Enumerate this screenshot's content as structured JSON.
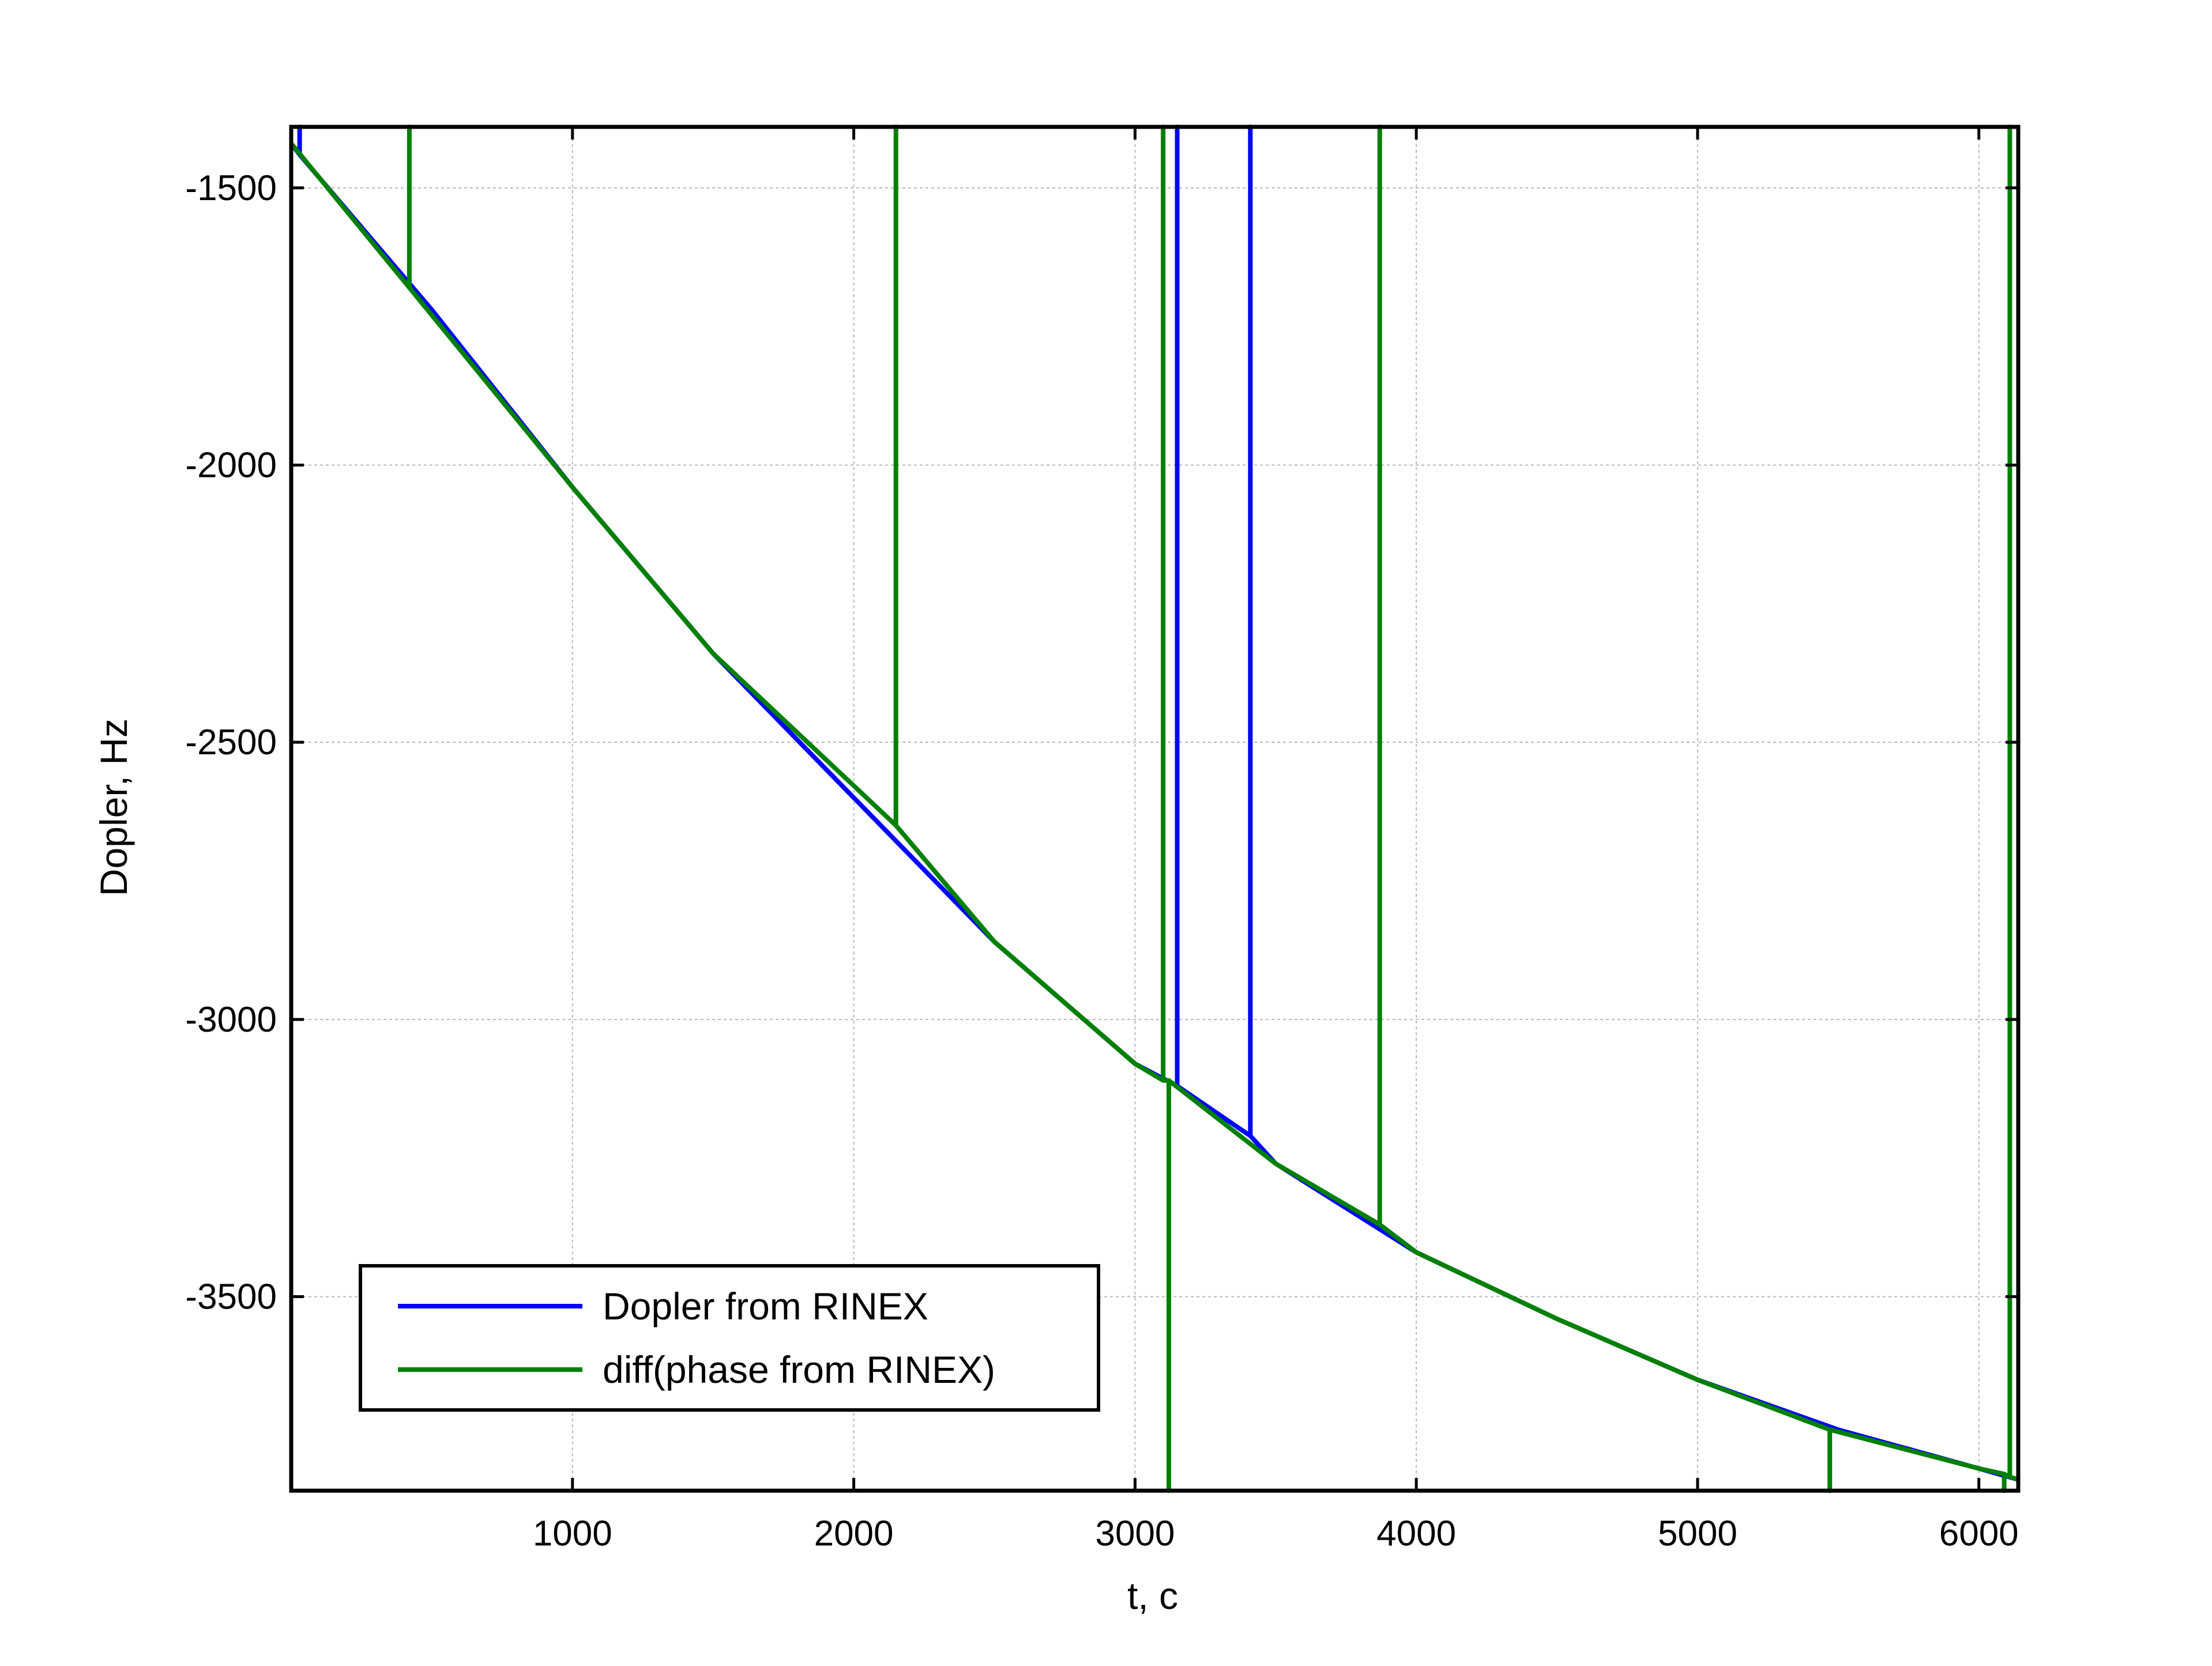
{
  "chart_data": {
    "type": "line",
    "xlabel": "t, c",
    "ylabel": "Dopler, Hz",
    "xlim": [
      0,
      6140
    ],
    "ylim": [
      -3850,
      -1390
    ],
    "x_ticks": [
      1000,
      2000,
      3000,
      4000,
      5000,
      6000
    ],
    "y_ticks": [
      -1500,
      -2000,
      -2500,
      -3000,
      -3500
    ],
    "grid": true,
    "legend_position": "bottom-left",
    "series": [
      {
        "name": "Dopler from RINEX",
        "color": "#0000ff",
        "x": [
          0,
          30,
          30,
          30,
          500,
          1000,
          1500,
          2000,
          2500,
          3000,
          3150,
          3150,
          3150,
          3410,
          3410,
          3410,
          3500,
          4000,
          4500,
          5000,
          5500,
          6000,
          6140
        ],
        "y": [
          -1420,
          -1440,
          -1390,
          -1440,
          -1720,
          -2040,
          -2340,
          -2600,
          -2860,
          -3080,
          -3120,
          -1390,
          -3120,
          -3210,
          -1390,
          -3210,
          -3260,
          -3420,
          -3540,
          -3650,
          -3740,
          -3810,
          -3830
        ]
      },
      {
        "name": "diff(phase from RINEX)",
        "color": "#008000",
        "x": [
          0,
          420,
          420,
          420,
          1000,
          1500,
          2150,
          2150,
          2150,
          2500,
          3000,
          3100,
          3100,
          3100,
          3120,
          3120,
          3120,
          3500,
          3870,
          3870,
          3870,
          4000,
          4500,
          5000,
          5470,
          5470,
          5470,
          6000,
          6090,
          6090,
          6090,
          6110,
          6110,
          6110,
          6140
        ],
        "y": [
          -1420,
          -1680,
          -1390,
          -1680,
          -2040,
          -2340,
          -2650,
          -1390,
          -2650,
          -2860,
          -3080,
          -3110,
          -1390,
          -3110,
          -3110,
          -3850,
          -3110,
          -3260,
          -3370,
          -1390,
          -3370,
          -3420,
          -3540,
          -3650,
          -3740,
          -3850,
          -3740,
          -3810,
          -3820,
          -3850,
          -3820,
          -3825,
          -1390,
          -3825,
          -3830
        ]
      }
    ]
  }
}
